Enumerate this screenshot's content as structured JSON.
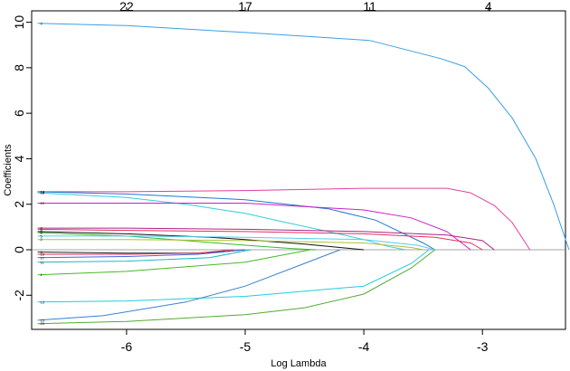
{
  "chart_data": {
    "type": "line",
    "xlabel": "Log Lambda",
    "ylabel": "Coefficients",
    "xlim": [
      -6.8,
      -2.3
    ],
    "ylim": [
      -3.5,
      10.5
    ],
    "x_ticks": [
      "-6",
      "-5",
      "-4",
      "-3"
    ],
    "x_tick_values": [
      -6,
      -5,
      -4,
      -3
    ],
    "y_ticks": [
      "-2",
      "0",
      "2",
      "4",
      "6",
      "8",
      "10"
    ],
    "y_tick_values": [
      -2,
      0,
      2,
      4,
      6,
      8,
      10
    ],
    "top_axis_labels": [
      "22",
      "17",
      "11",
      "4"
    ],
    "top_axis_positions": [
      -6.0,
      -5.0,
      -3.95,
      -2.95
    ],
    "grid": false,
    "series": [
      {
        "label": "9",
        "color": "#3aa0e0",
        "x": [
          -6.75,
          -6.0,
          -5.0,
          -4.4,
          -3.95,
          -3.35,
          -3.15,
          -2.95,
          -2.75,
          -2.55,
          -2.4,
          -2.27
        ],
        "y": [
          9.95,
          9.85,
          9.55,
          9.35,
          9.2,
          8.4,
          8.05,
          7.1,
          5.8,
          4.0,
          2.0,
          0.0
        ]
      },
      {
        "label": "16",
        "color": "#e040a0",
        "x": [
          -6.75,
          -6.0,
          -5.0,
          -4.0,
          -3.3,
          -3.1,
          -2.9,
          -2.75,
          -2.6
        ],
        "y": [
          2.55,
          2.55,
          2.6,
          2.7,
          2.7,
          2.5,
          1.95,
          1.2,
          0.0
        ]
      },
      {
        "label": "18",
        "color": "#30d0d8",
        "x": [
          -6.75,
          -6.0,
          -5.5,
          -5.0,
          -4.7,
          -4.3,
          -4.0,
          -3.8,
          -3.65
        ],
        "y": [
          2.5,
          2.3,
          2.0,
          1.6,
          1.25,
          0.8,
          0.45,
          0.15,
          0.0
        ]
      },
      {
        "label": "14",
        "color": "#2277cc",
        "x": [
          -6.75,
          -6.0,
          -5.0,
          -4.3,
          -3.9,
          -3.5,
          -3.4
        ],
        "y": [
          2.55,
          2.45,
          2.2,
          1.8,
          1.3,
          0.3,
          0.0
        ]
      },
      {
        "label": "12",
        "color": "#c820c8",
        "x": [
          -6.75,
          -6.0,
          -5.0,
          -4.0,
          -3.6,
          -3.3,
          -3.1
        ],
        "y": [
          2.05,
          2.05,
          2.05,
          1.75,
          1.4,
          0.8,
          0.0
        ]
      },
      {
        "label": "7",
        "color": "#aa2288",
        "x": [
          -6.75,
          -6.0,
          -5.0,
          -4.0,
          -3.3,
          -3.0,
          -2.9
        ],
        "y": [
          0.95,
          0.95,
          0.9,
          0.8,
          0.65,
          0.4,
          0.0
        ]
      },
      {
        "label": "6",
        "color": "#e03060",
        "x": [
          -6.75,
          -6.0,
          -5.0,
          -4.0,
          -3.4,
          -3.1,
          -3.0
        ],
        "y": [
          0.9,
          0.85,
          0.8,
          0.7,
          0.55,
          0.3,
          0.0
        ]
      },
      {
        "label": "3",
        "color": "#111111",
        "x": [
          -6.75,
          -6.0,
          -5.3,
          -5.0,
          -4.5,
          -4.0
        ],
        "y": [
          0.8,
          0.7,
          0.55,
          0.45,
          0.25,
          0.0
        ]
      },
      {
        "label": "8",
        "color": "#33bb33",
        "x": [
          -6.75,
          -6.0,
          -5.5,
          -5.0,
          -4.6,
          -4.4
        ],
        "y": [
          0.75,
          0.6,
          0.4,
          0.2,
          0.05,
          0.0
        ]
      },
      {
        "label": "5",
        "color": "#55ccee",
        "x": [
          -6.75,
          -6.0,
          -5.0,
          -4.0,
          -3.55,
          -3.4
        ],
        "y": [
          0.6,
          0.6,
          0.55,
          0.45,
          0.2,
          0.0
        ]
      },
      {
        "label": "2",
        "color": "#b0c030",
        "x": [
          -6.75,
          -6.0,
          -5.0,
          -4.0,
          -3.6,
          -3.5
        ],
        "y": [
          0.45,
          0.45,
          0.4,
          0.3,
          0.1,
          0.0
        ]
      },
      {
        "label": "4",
        "color": "#222222",
        "x": [
          -6.75,
          -6.0,
          -5.4,
          -5.1,
          -5.0
        ],
        "y": [
          -0.1,
          -0.15,
          -0.15,
          -0.05,
          0.0
        ]
      },
      {
        "label": "10",
        "color": "#dd3355",
        "x": [
          -6.75,
          -6.0,
          -5.4,
          -5.2,
          -5.1
        ],
        "y": [
          -0.2,
          -0.2,
          -0.15,
          -0.05,
          0.0
        ]
      },
      {
        "label": "17",
        "color": "#4466dd",
        "x": [
          -6.75,
          -6.0,
          -5.4,
          -5.1,
          -5.0
        ],
        "y": [
          -0.35,
          -0.3,
          -0.2,
          -0.05,
          0.0
        ]
      },
      {
        "label": "11",
        "color": "#20b8c0",
        "x": [
          -6.75,
          -6.0,
          -5.3,
          -5.05,
          -4.95
        ],
        "y": [
          -0.55,
          -0.5,
          -0.35,
          -0.1,
          0.0
        ]
      },
      {
        "label": "1",
        "color": "#44bb22",
        "x": [
          -6.75,
          -6.0,
          -5.0,
          -4.6,
          -4.45
        ],
        "y": [
          -1.1,
          -0.95,
          -0.55,
          -0.15,
          0.0
        ]
      },
      {
        "label": "13",
        "color": "#22ccdd",
        "x": [
          -6.75,
          -6.0,
          -5.0,
          -4.0,
          -3.6,
          -3.45
        ],
        "y": [
          -2.3,
          -2.25,
          -2.05,
          -1.6,
          -0.6,
          0.0
        ]
      },
      {
        "label": "15",
        "color": "#3a80cc",
        "x": [
          -6.75,
          -6.2,
          -5.5,
          -5.0,
          -4.5,
          -4.2
        ],
        "y": [
          -3.1,
          -2.9,
          -2.3,
          -1.6,
          -0.6,
          0.0
        ]
      },
      {
        "label": "20",
        "color": "#55aa33",
        "x": [
          -6.75,
          -6.0,
          -5.0,
          -4.5,
          -4.0,
          -3.6,
          -3.4
        ],
        "y": [
          -3.25,
          -3.15,
          -2.85,
          -2.55,
          -1.95,
          -0.8,
          0.0
        ]
      }
    ]
  }
}
